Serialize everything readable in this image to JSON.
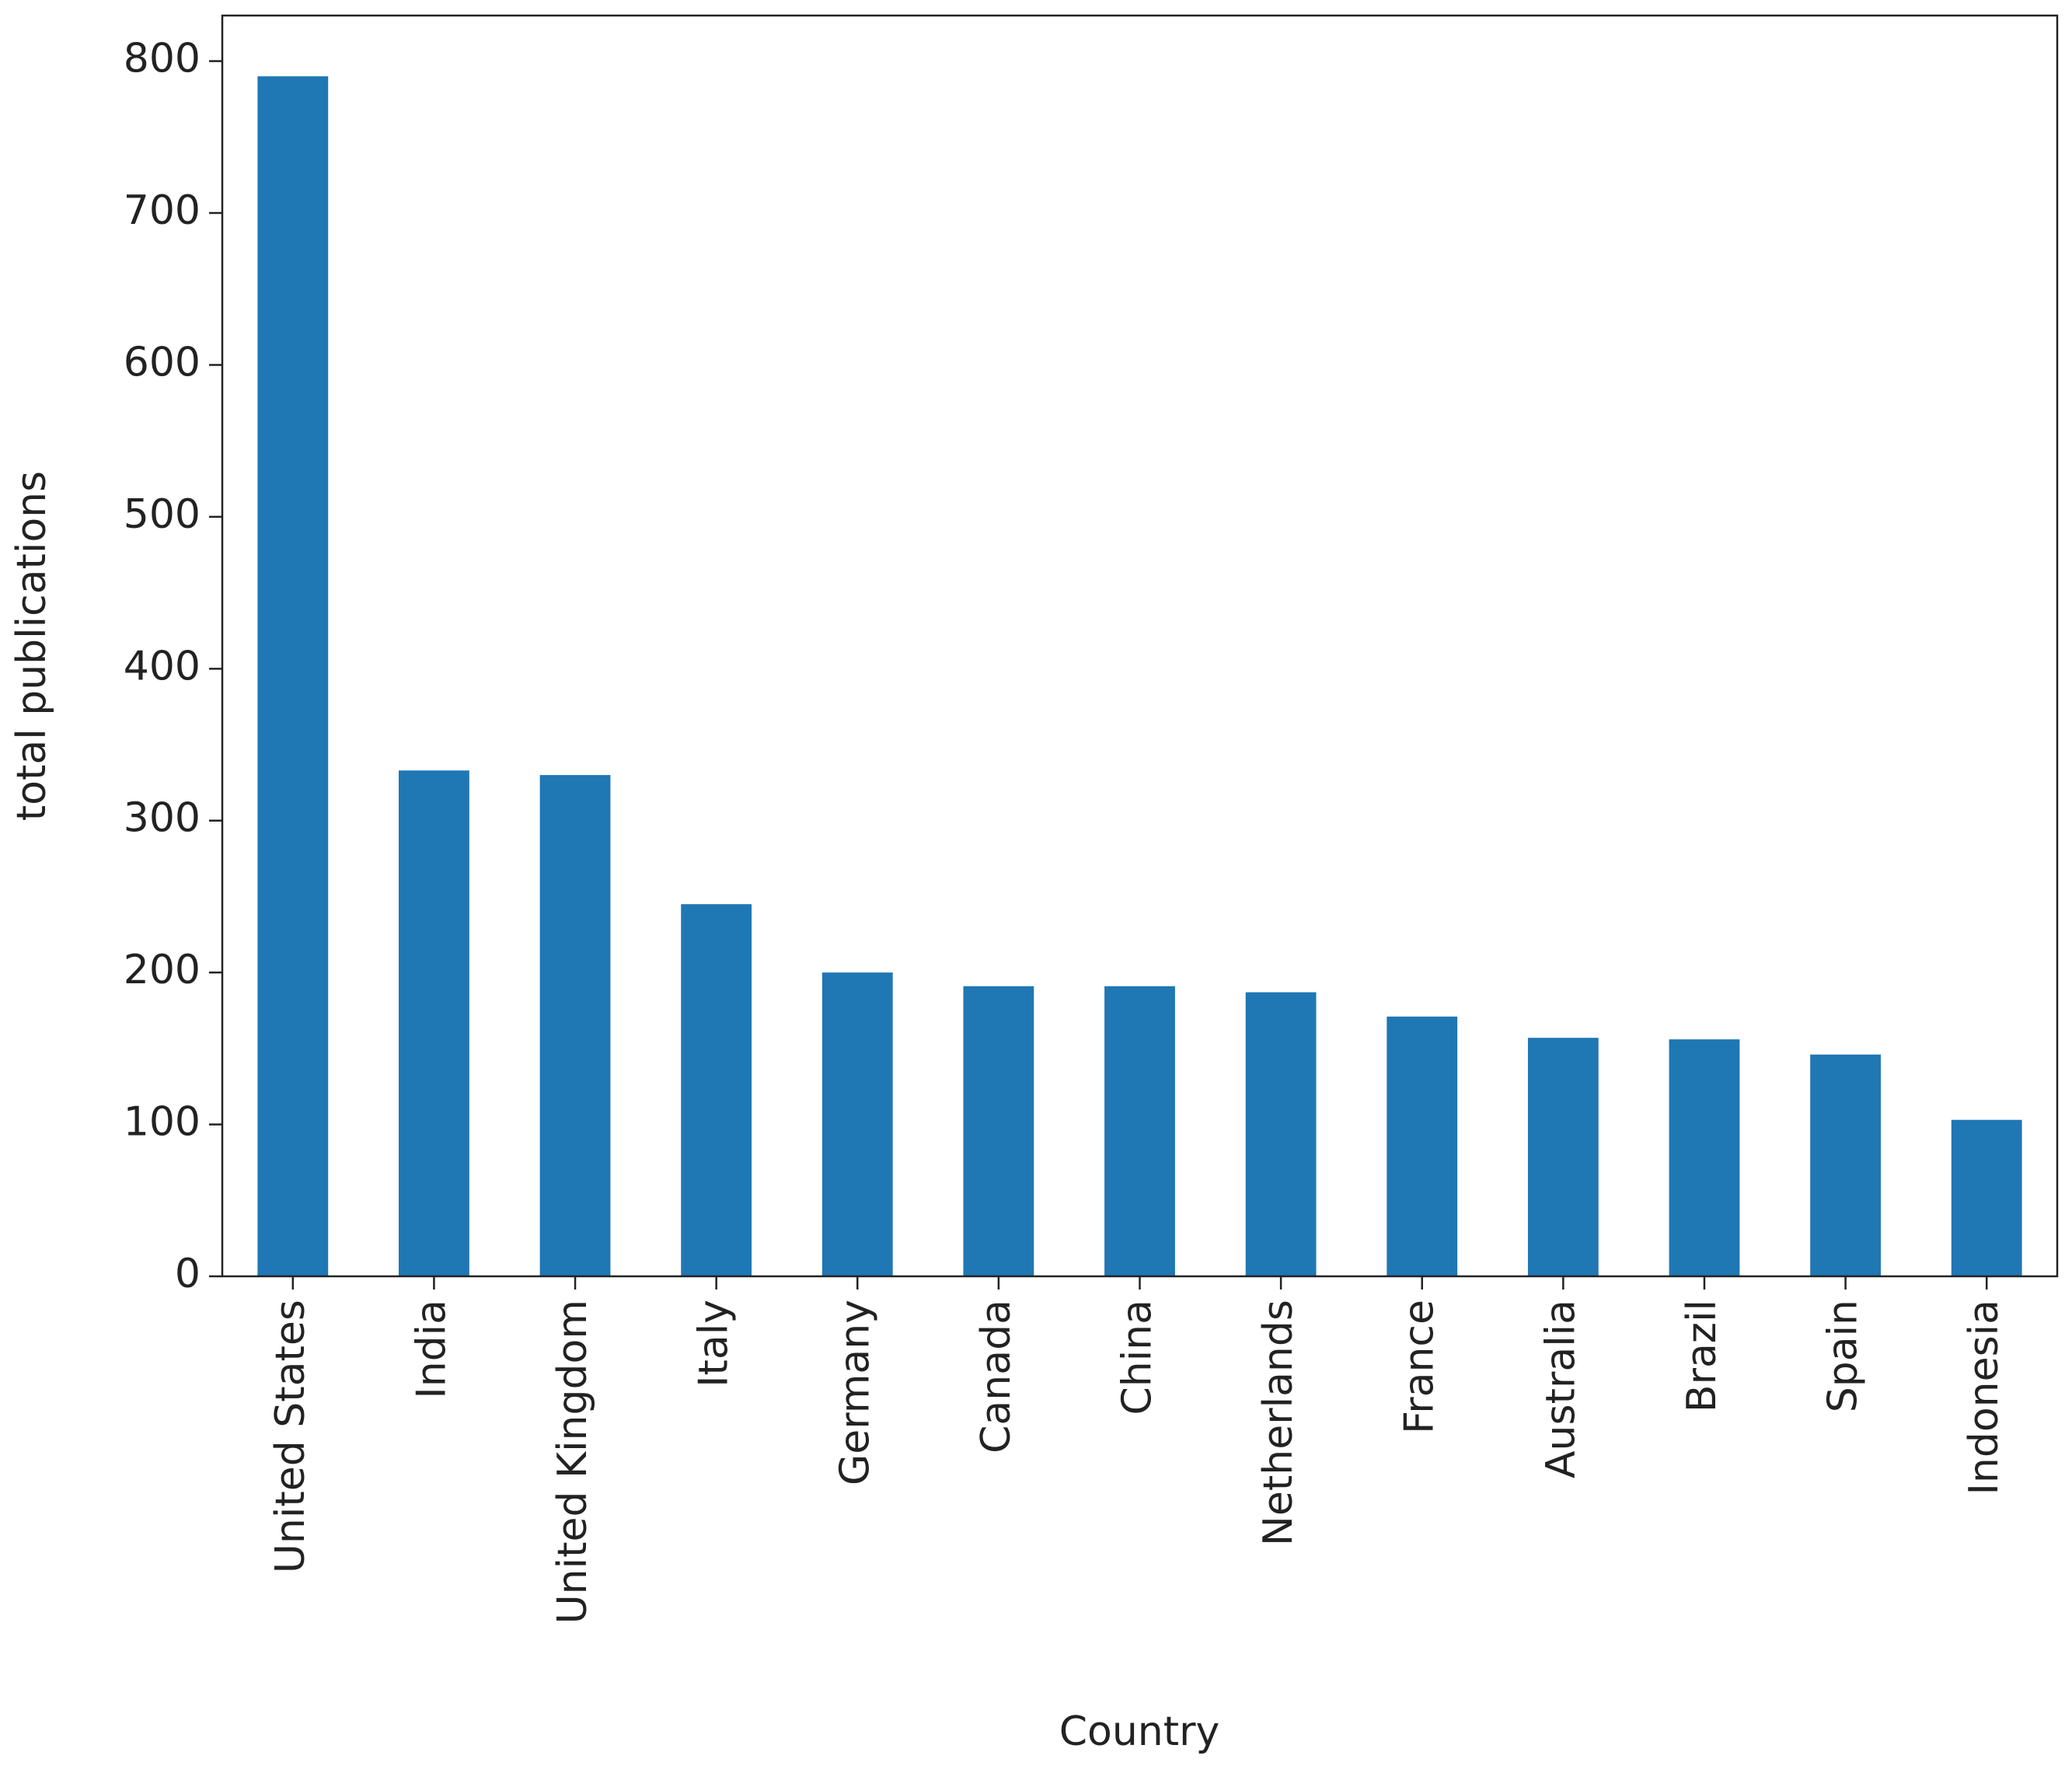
{
  "chart_data": {
    "type": "bar",
    "x_label": "Country",
    "y_label": "total publications",
    "categories": [
      "United States",
      "India",
      "United Kingdom",
      "Italy",
      "Germany",
      "Canada",
      "China",
      "Netherlands",
      "France",
      "Australia",
      "Brazil",
      "Spain",
      "Indonesia"
    ],
    "values": [
      790,
      333,
      330,
      245,
      200,
      191,
      191,
      187,
      171,
      157,
      156,
      146,
      103
    ],
    "color": "#1f77b4",
    "ylim": [
      0,
      830
    ],
    "yticks": [
      0,
      100,
      200,
      300,
      400,
      500,
      600,
      700,
      800
    ],
    "grid": false
  }
}
